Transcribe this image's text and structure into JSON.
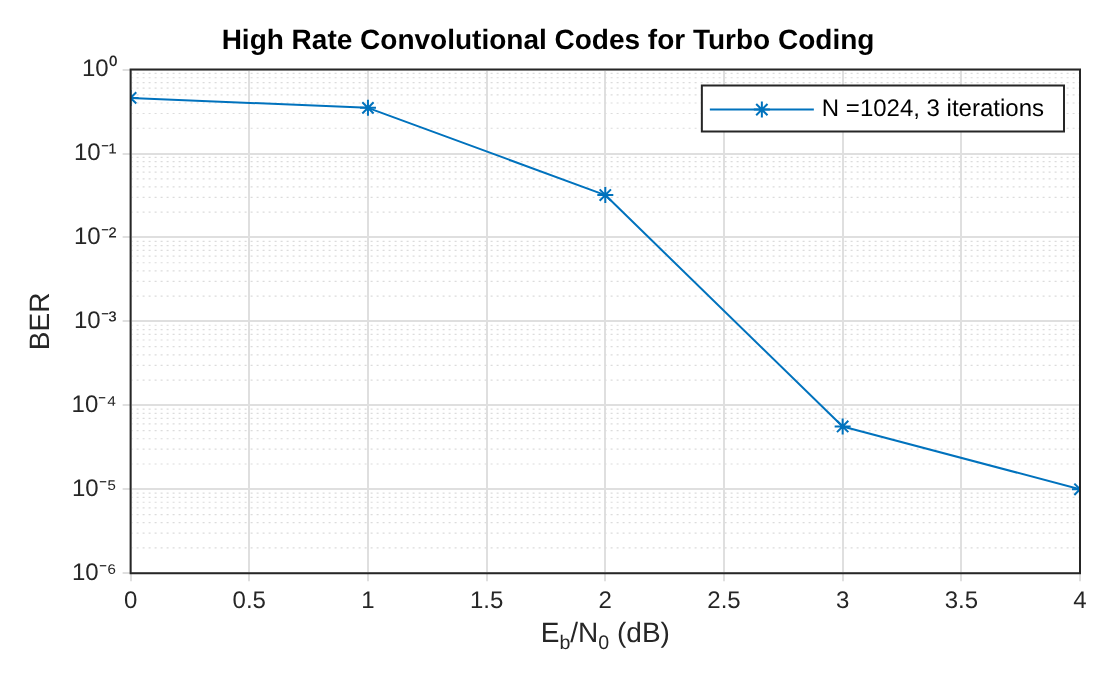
{
  "chart_data": {
    "type": "line",
    "title": "High Rate Convolutional Codes for Turbo Coding",
    "xlabel": "E$_{b}$/N$_{0}$ (dB)",
    "ylabel": "BER",
    "x": [
      0,
      1,
      2,
      3,
      4
    ],
    "series": [
      {
        "name": "N =1024, 3 iterations",
        "color": "#0072bd",
        "values": [
          0.46,
          0.35,
          0.032,
          5.6e-05,
          1e-05
        ]
      }
    ],
    "xlim": [
      0,
      4
    ],
    "xticks": [
      0,
      0.5,
      1,
      1.5,
      2,
      2.5,
      3,
      3.5,
      4
    ],
    "ylim": [
      1e-06,
      1
    ],
    "yticks": [
      {
        "value": 1e-06,
        "label": "10⁻⁶"
      },
      {
        "value": 1e-05,
        "label": "10⁻⁵"
      },
      {
        "value": 0.0001,
        "label": "10⁻⁴"
      },
      {
        "value": 0.001,
        "label": "10⁻³"
      },
      {
        "value": 0.01,
        "label": "10⁻²"
      },
      {
        "value": 0.1,
        "label": "10⁻¹"
      },
      {
        "value": 1,
        "label": "10⁰"
      }
    ],
    "log": "y",
    "grid": true,
    "legend": "top right",
    "marker": "cross",
    "line_style": "solid"
  }
}
